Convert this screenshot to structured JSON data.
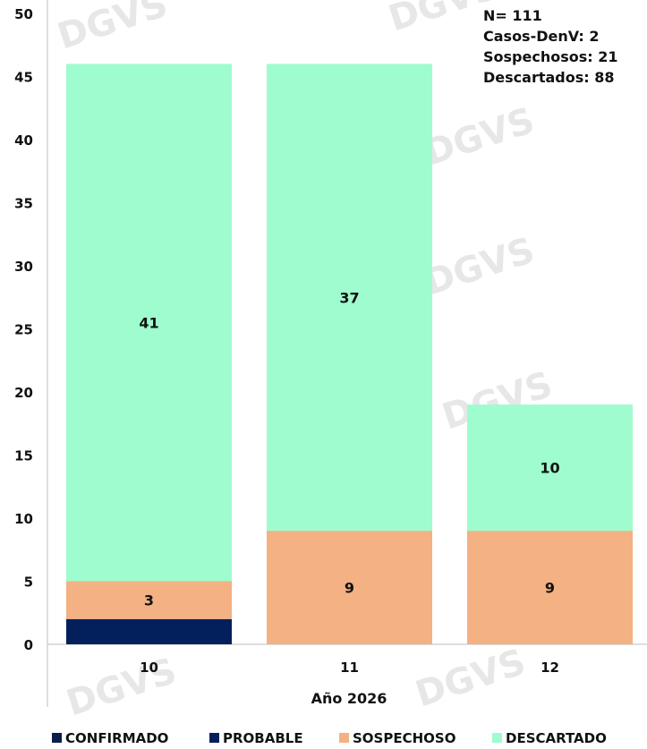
{
  "chart_data": {
    "type": "bar",
    "stacked": true,
    "xlabel": "Año 2026",
    "ylabel": "",
    "ylim": [
      0,
      50
    ],
    "yticks": [
      0,
      5,
      10,
      15,
      20,
      25,
      30,
      35,
      40,
      45,
      50
    ],
    "categories": [
      "10",
      "11",
      "12"
    ],
    "series": [
      {
        "name": "CONFIRMADO",
        "color": "#0b1f4d",
        "values": [
          0,
          0,
          0
        ]
      },
      {
        "name": "PROBABLE",
        "color": "#03205c",
        "values": [
          2,
          0,
          0
        ]
      },
      {
        "name": "SOSPECHOSO",
        "color": "#f4b183",
        "values": [
          3,
          9,
          9
        ]
      },
      {
        "name": "DESCARTADO",
        "color": "#9ffccf",
        "values": [
          41,
          37,
          10
        ]
      }
    ],
    "data_labels": [
      {
        "category": "10",
        "series": "SOSPECHOSO",
        "text": "3"
      },
      {
        "category": "10",
        "series": "DESCARTADO",
        "text": "41"
      },
      {
        "category": "11",
        "series": "SOSPECHOSO",
        "text": "9"
      },
      {
        "category": "11",
        "series": "DESCARTADO",
        "text": "37"
      },
      {
        "category": "12",
        "series": "SOSPECHOSO",
        "text": "9"
      },
      {
        "category": "12",
        "series": "DESCARTADO",
        "text": "10"
      }
    ],
    "annotations": [
      "N= 111",
      "Casos-DenV: 2",
      "Sospechosos: 21",
      "Descartados: 88"
    ],
    "legend_position": "bottom",
    "grid": false,
    "watermark": "DGVS"
  }
}
